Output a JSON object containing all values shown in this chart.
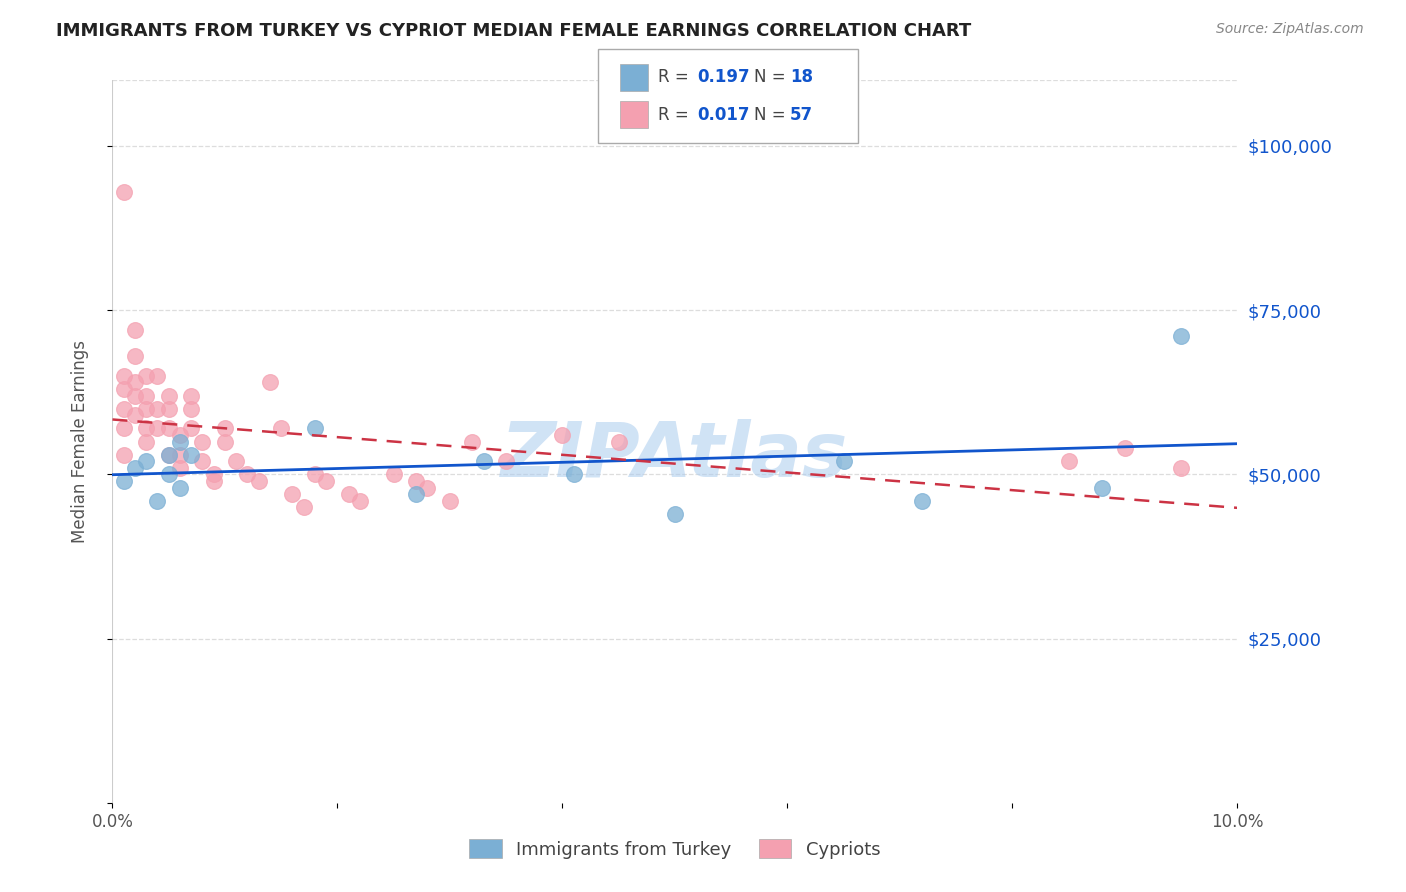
{
  "title": "IMMIGRANTS FROM TURKEY VS CYPRIOT MEDIAN FEMALE EARNINGS CORRELATION CHART",
  "source": "Source: ZipAtlas.com",
  "ylabel": "Median Female Earnings",
  "x_min": 0.0,
  "x_max": 0.1,
  "y_min": 0,
  "y_max": 110000,
  "yticks": [
    0,
    25000,
    50000,
    75000,
    100000
  ],
  "ytick_labels": [
    "",
    "$25,000",
    "$50,000",
    "$75,000",
    "$100,000"
  ],
  "xticks": [
    0.0,
    0.02,
    0.04,
    0.06,
    0.08,
    0.1
  ],
  "xtick_labels": [
    "0.0%",
    "",
    "",
    "",
    "",
    "10.0%"
  ],
  "legend_label1": "Immigrants from Turkey",
  "legend_label2": "Cypriots",
  "blue_color": "#7BAFD4",
  "pink_color": "#F4A0B0",
  "trend_blue": "#1155CC",
  "trend_pink": "#CC3344",
  "watermark": "ZIPAtlas",
  "watermark_color": "#AACCEE",
  "turkey_x": [
    0.001,
    0.002,
    0.003,
    0.004,
    0.005,
    0.005,
    0.006,
    0.006,
    0.007,
    0.018,
    0.027,
    0.033,
    0.041,
    0.05,
    0.065,
    0.072,
    0.088,
    0.095
  ],
  "turkey_y": [
    49000,
    51000,
    52000,
    46000,
    50000,
    53000,
    55000,
    48000,
    53000,
    57000,
    47000,
    52000,
    50000,
    44000,
    52000,
    46000,
    48000,
    71000
  ],
  "cyprus_x": [
    0.001,
    0.001,
    0.001,
    0.001,
    0.001,
    0.001,
    0.002,
    0.002,
    0.002,
    0.002,
    0.002,
    0.003,
    0.003,
    0.003,
    0.003,
    0.003,
    0.004,
    0.004,
    0.004,
    0.005,
    0.005,
    0.005,
    0.005,
    0.006,
    0.006,
    0.006,
    0.007,
    0.007,
    0.007,
    0.008,
    0.008,
    0.009,
    0.009,
    0.01,
    0.01,
    0.011,
    0.012,
    0.013,
    0.014,
    0.015,
    0.016,
    0.017,
    0.018,
    0.019,
    0.021,
    0.022,
    0.025,
    0.027,
    0.028,
    0.03,
    0.032,
    0.035,
    0.04,
    0.045,
    0.085,
    0.09,
    0.095
  ],
  "cyprus_y": [
    93000,
    65000,
    63000,
    60000,
    57000,
    53000,
    72000,
    68000,
    64000,
    62000,
    59000,
    65000,
    62000,
    60000,
    57000,
    55000,
    65000,
    60000,
    57000,
    62000,
    60000,
    57000,
    53000,
    56000,
    53000,
    51000,
    62000,
    60000,
    57000,
    55000,
    52000,
    50000,
    49000,
    57000,
    55000,
    52000,
    50000,
    49000,
    64000,
    57000,
    47000,
    45000,
    50000,
    49000,
    47000,
    46000,
    50000,
    49000,
    48000,
    46000,
    55000,
    52000,
    56000,
    55000,
    52000,
    54000,
    51000
  ]
}
